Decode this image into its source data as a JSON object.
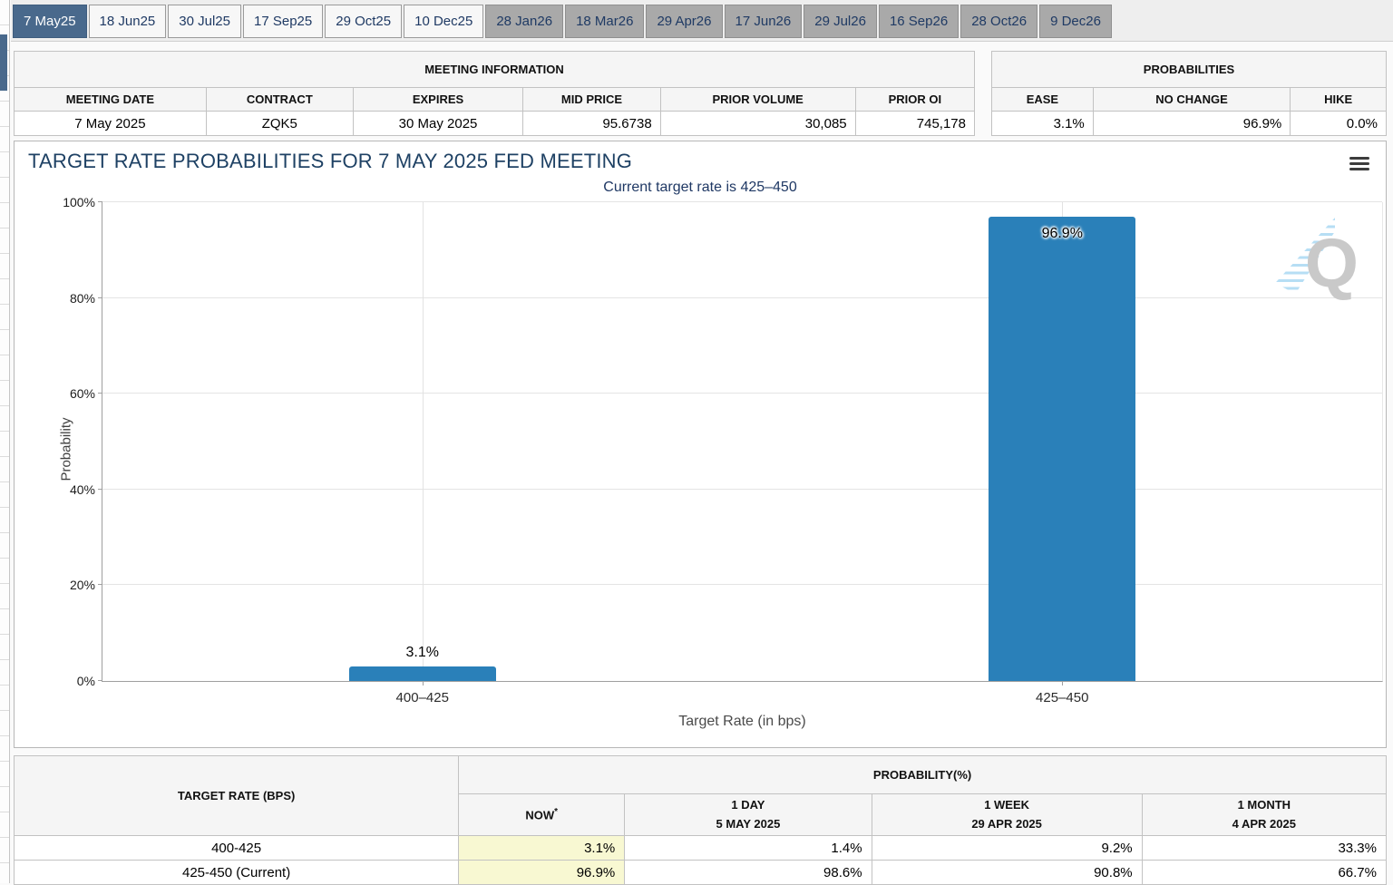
{
  "tabs": {
    "items": [
      {
        "label": "7 May25",
        "state": "selected"
      },
      {
        "label": "18 Jun25",
        "state": "light"
      },
      {
        "label": "30 Jul25",
        "state": "light"
      },
      {
        "label": "17 Sep25",
        "state": "light"
      },
      {
        "label": "29 Oct25",
        "state": "light"
      },
      {
        "label": "10 Dec25",
        "state": "light"
      },
      {
        "label": "28 Jan26",
        "state": "gray"
      },
      {
        "label": "18 Mar26",
        "state": "gray"
      },
      {
        "label": "29 Apr26",
        "state": "gray"
      },
      {
        "label": "17 Jun26",
        "state": "gray"
      },
      {
        "label": "29 Jul26",
        "state": "gray"
      },
      {
        "label": "16 Sep26",
        "state": "gray"
      },
      {
        "label": "28 Oct26",
        "state": "gray"
      },
      {
        "label": "9 Dec26",
        "state": "gray"
      }
    ]
  },
  "meeting_information": {
    "title": "MEETING INFORMATION",
    "columns": [
      "MEETING DATE",
      "CONTRACT",
      "EXPIRES",
      "MID PRICE",
      "PRIOR VOLUME",
      "PRIOR OI"
    ],
    "row": {
      "meeting_date": "7 May 2025",
      "contract": "ZQK5",
      "expires": "30 May 2025",
      "mid_price": "95.6738",
      "prior_volume": "30,085",
      "prior_oi": "745,178"
    }
  },
  "probabilities": {
    "title": "PROBABILITIES",
    "columns": [
      "EASE",
      "NO CHANGE",
      "HIKE"
    ],
    "row": {
      "ease": "3.1%",
      "no_change": "96.9%",
      "hike": "0.0%"
    }
  },
  "chart": {
    "title": "TARGET RATE PROBABILITIES FOR 7 MAY 2025 FED MEETING",
    "subtitle": "Current target rate is 425–450",
    "watermark_letter": "Q"
  },
  "chart_data": {
    "type": "bar",
    "title": "TARGET RATE PROBABILITIES FOR 7 MAY 2025 FED MEETING",
    "subtitle": "Current target rate is 425–450",
    "categories": [
      "400–425",
      "425–450"
    ],
    "values": [
      3.1,
      96.9
    ],
    "bar_labels": [
      "3.1%",
      "96.9%"
    ],
    "xlabel": "Target Rate (in bps)",
    "ylabel": "Probability",
    "ylim": [
      0,
      100
    ],
    "yticks": [
      "0%",
      "20%",
      "40%",
      "60%",
      "80%",
      "100%"
    ],
    "grid": true,
    "legend": false,
    "bar_color": "#2a80b9"
  },
  "probability_table": {
    "corner_header": "TARGET RATE (BPS)",
    "group_header": "PROBABILITY(%)",
    "col_headers": [
      {
        "line1": "NOW",
        "sup": "*",
        "line2": ""
      },
      {
        "line1": "1 DAY",
        "line2": "5 MAY 2025"
      },
      {
        "line1": "1 WEEK",
        "line2": "29 APR 2025"
      },
      {
        "line1": "1 MONTH",
        "line2": "4 APR 2025"
      }
    ],
    "rows": [
      {
        "target": "400-425",
        "now": "3.1%",
        "day": "1.4%",
        "week": "9.2%",
        "month": "33.3%"
      },
      {
        "target": "425-450 (Current)",
        "now": "96.9%",
        "day": "98.6%",
        "week": "90.8%",
        "month": "66.7%"
      }
    ]
  },
  "colors": {
    "selected_tab": "#49698c",
    "bar": "#2a80b9",
    "navy_text": "#1f3a64",
    "now_highlight": "#f8f8d2",
    "watermark_gray": "#c9c9c9",
    "watermark_blue": "#b2dcf4"
  }
}
